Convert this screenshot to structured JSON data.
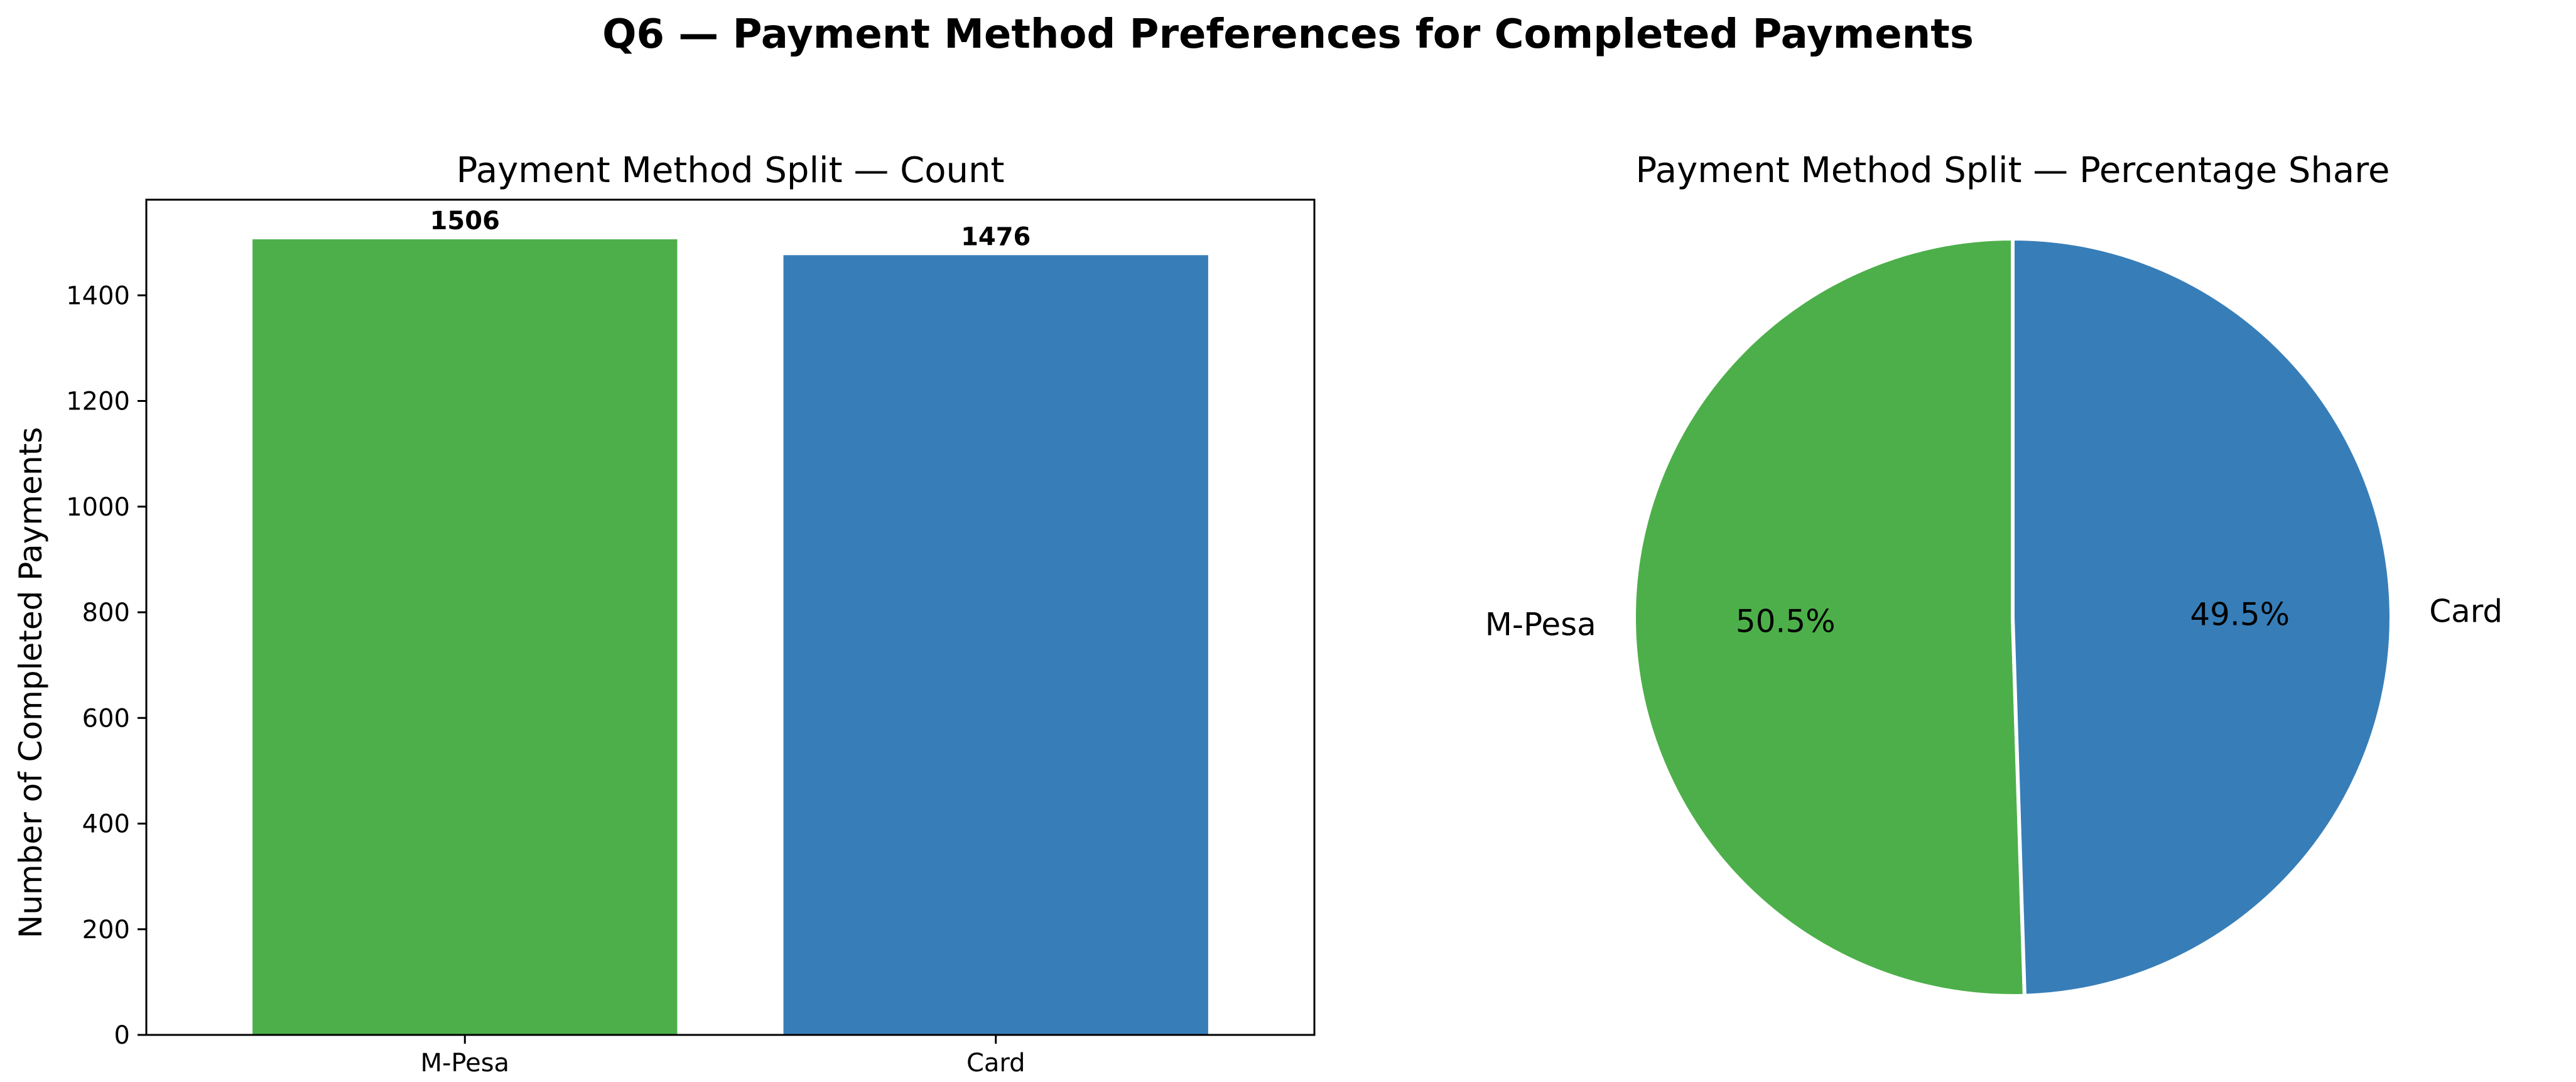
{
  "figure": {
    "title": "Q6 — Payment Method Preferences for Completed Payments"
  },
  "colors": {
    "mpesa": "#4daf4a",
    "card": "#377eb8"
  },
  "chart_data": [
    {
      "type": "bar",
      "title": "Payment Method Split — Count",
      "xlabel": "",
      "ylabel": "Number of Completed Payments",
      "categories": [
        "M-Pesa",
        "Card"
      ],
      "values": [
        1506,
        1476
      ],
      "value_labels": [
        "1506",
        "1476"
      ],
      "ylim": [
        0,
        1581
      ],
      "yticks": [
        0,
        200,
        400,
        600,
        800,
        1000,
        1200,
        1400
      ],
      "ytick_labels": [
        "0",
        "200",
        "400",
        "600",
        "800",
        "1000",
        "1200",
        "1400"
      ],
      "grid": false,
      "colors": [
        "#4daf4a",
        "#377eb8"
      ]
    },
    {
      "type": "pie",
      "title": "Payment Method Split — Percentage Share",
      "labels": [
        "M-Pesa",
        "Card"
      ],
      "values": [
        50.5,
        49.5
      ],
      "pct_labels": [
        "50.5%",
        "49.5%"
      ],
      "start_angle_deg": 90,
      "direction": "counterclockwise",
      "colors": [
        "#4daf4a",
        "#377eb8"
      ]
    }
  ]
}
